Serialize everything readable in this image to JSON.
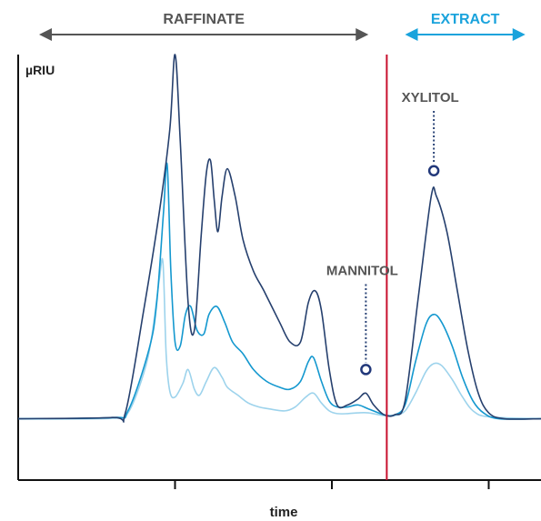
{
  "chart_data": {
    "type": "line",
    "title": "",
    "xlabel": "time",
    "ylabel": "µRIU",
    "xlim": [
      0,
      100
    ],
    "ylim": [
      0,
      100
    ],
    "grid": false,
    "x_ticks": [
      30,
      60,
      90
    ],
    "regions": [
      {
        "name": "RAFFINATE",
        "from": 4,
        "to": 67,
        "color": "#555555"
      },
      {
        "name": "EXTRACT",
        "from": 74,
        "to": 97,
        "color": "#1aa3dc"
      }
    ],
    "divider": {
      "x": 70.5,
      "color": "#c8102e"
    },
    "series": [
      {
        "color": "#26406e",
        "points": [
          [
            0,
            7.5
          ],
          [
            18,
            7.8
          ],
          [
            20.5,
            9
          ],
          [
            24,
            35
          ],
          [
            27,
            60
          ],
          [
            29,
            81
          ],
          [
            30,
            100
          ],
          [
            31,
            78
          ],
          [
            32.5,
            37
          ],
          [
            33.7,
            30
          ],
          [
            35,
            54
          ],
          [
            36,
            70
          ],
          [
            36.8,
            73
          ],
          [
            37.5,
            63
          ],
          [
            38.2,
            55
          ],
          [
            39,
            64
          ],
          [
            40,
            71
          ],
          [
            41.5,
            64
          ],
          [
            43,
            53
          ],
          [
            45,
            45
          ],
          [
            47,
            40
          ],
          [
            50,
            32
          ],
          [
            52,
            27
          ],
          [
            54,
            27
          ],
          [
            55.5,
            37
          ],
          [
            56.8,
            40
          ],
          [
            58,
            35
          ],
          [
            59.5,
            20
          ],
          [
            61,
            11
          ],
          [
            63,
            11
          ],
          [
            65,
            12.5
          ],
          [
            66.5,
            14
          ],
          [
            68,
            11
          ],
          [
            70,
            8.5
          ],
          [
            72,
            8.5
          ],
          [
            74,
            12
          ],
          [
            76.5,
            38
          ],
          [
            79,
            64
          ],
          [
            80,
            64
          ],
          [
            82,
            55
          ],
          [
            84,
            40
          ],
          [
            86,
            25
          ],
          [
            88,
            14
          ],
          [
            90,
            9
          ],
          [
            93,
            7.5
          ],
          [
            100,
            7.5
          ]
        ]
      },
      {
        "color": "#1498cf",
        "points": [
          [
            0,
            7.5
          ],
          [
            18,
            7.8
          ],
          [
            21,
            9.5
          ],
          [
            25,
            25
          ],
          [
            26.5,
            37
          ],
          [
            27.8,
            60
          ],
          [
            28.5,
            72
          ],
          [
            29.2,
            45
          ],
          [
            30,
            27
          ],
          [
            31,
            26
          ],
          [
            32,
            34
          ],
          [
            33,
            36
          ],
          [
            34.2,
            30
          ],
          [
            35.5,
            29
          ],
          [
            36.5,
            34
          ],
          [
            38,
            36
          ],
          [
            39.5,
            32
          ],
          [
            41,
            27
          ],
          [
            43,
            24
          ],
          [
            45,
            20
          ],
          [
            47.5,
            17
          ],
          [
            50,
            15.5
          ],
          [
            52,
            15
          ],
          [
            54,
            17
          ],
          [
            55.5,
            22
          ],
          [
            56.5,
            23
          ],
          [
            58,
            17
          ],
          [
            59.5,
            12
          ],
          [
            61,
            10.5
          ],
          [
            63,
            10.5
          ],
          [
            65,
            11
          ],
          [
            67,
            10
          ],
          [
            70,
            8.5
          ],
          [
            72,
            8.5
          ],
          [
            74,
            11
          ],
          [
            76,
            22
          ],
          [
            78,
            31.5
          ],
          [
            79.5,
            34
          ],
          [
            81,
            32
          ],
          [
            83,
            26
          ],
          [
            85,
            18
          ],
          [
            87,
            12
          ],
          [
            89,
            9
          ],
          [
            92,
            7.5
          ],
          [
            100,
            7.5
          ]
        ]
      },
      {
        "color": "#9dd3ec",
        "points": [
          [
            0,
            7.5
          ],
          [
            18,
            7.6
          ],
          [
            21,
            9
          ],
          [
            24,
            19
          ],
          [
            25.5,
            28
          ],
          [
            27,
            43
          ],
          [
            27.7,
            47
          ],
          [
            28.3,
            24
          ],
          [
            29,
            14.5
          ],
          [
            30,
            13
          ],
          [
            31.5,
            16.5
          ],
          [
            32.5,
            20
          ],
          [
            33.7,
            15
          ],
          [
            34.7,
            13.5
          ],
          [
            36,
            17
          ],
          [
            37.5,
            20.5
          ],
          [
            39,
            18
          ],
          [
            40,
            15.5
          ],
          [
            42,
            13.5
          ],
          [
            44,
            11.5
          ],
          [
            46,
            10.5
          ],
          [
            48,
            10
          ],
          [
            51,
            9.5
          ],
          [
            53,
            10.5
          ],
          [
            55,
            13
          ],
          [
            56.5,
            14
          ],
          [
            58,
            11.5
          ],
          [
            59.5,
            9.5
          ],
          [
            61,
            8.8
          ],
          [
            63,
            8.8
          ],
          [
            65,
            9
          ],
          [
            67,
            9
          ],
          [
            70,
            8.3
          ],
          [
            72,
            8.3
          ],
          [
            74,
            9.5
          ],
          [
            76,
            14
          ],
          [
            78,
            19.5
          ],
          [
            79.5,
            21.5
          ],
          [
            81,
            21
          ],
          [
            83,
            17.5
          ],
          [
            85,
            13
          ],
          [
            87,
            9.5
          ],
          [
            90,
            8
          ],
          [
            100,
            7.5
          ]
        ]
      }
    ],
    "annotations": [
      {
        "text": "MANNITOL",
        "x": 66.5,
        "y": 14,
        "marker_y": 20,
        "text_y": 44
      },
      {
        "text": "XYLITOL",
        "x": 79.5,
        "y": 64,
        "marker_y": 70.5,
        "text_y": 88
      }
    ]
  }
}
